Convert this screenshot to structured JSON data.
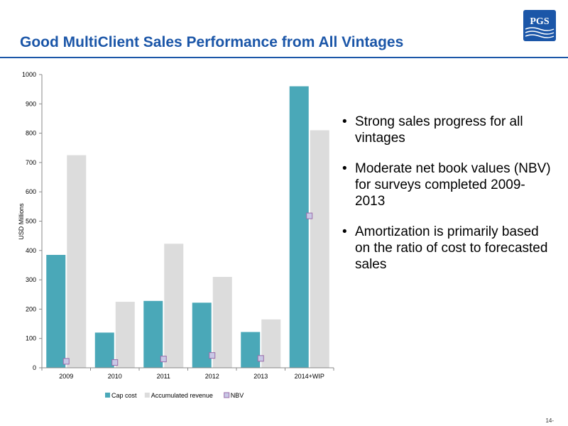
{
  "slide": {
    "title": "Good MultiClient Sales Performance from All Vintages",
    "logo_text": "PGS",
    "page_number": "14-",
    "accent_color": "#1b56a8"
  },
  "bullets": [
    "Strong sales progress for all vintages",
    "Moderate net book values (NBV) for surveys completed 2009-2013",
    "Amortization is primarily based on the ratio of cost to forecasted sales"
  ],
  "chart_data": {
    "type": "bar",
    "categories": [
      "2009",
      "2010",
      "2011",
      "2012",
      "2013",
      "2014+WIP"
    ],
    "series": [
      {
        "name": "Cap cost",
        "type": "bar",
        "color": "#4aa8b8",
        "values": [
          385,
          120,
          228,
          222,
          122,
          960
        ]
      },
      {
        "name": "Accumulated revenue",
        "type": "bar",
        "color": "#dcdcdc",
        "values": [
          725,
          225,
          423,
          310,
          165,
          810
        ]
      },
      {
        "name": "NBV",
        "type": "marker",
        "color": "#c8c8e6",
        "values": [
          22,
          18,
          30,
          42,
          32,
          518
        ]
      }
    ],
    "title": "",
    "xlabel": "",
    "ylabel": "USD Millions",
    "ylim": [
      0,
      1000
    ],
    "yticks": [
      0,
      100,
      200,
      300,
      400,
      500,
      600,
      700,
      800,
      900,
      1000
    ],
    "grid": false,
    "legend_position": "bottom"
  }
}
